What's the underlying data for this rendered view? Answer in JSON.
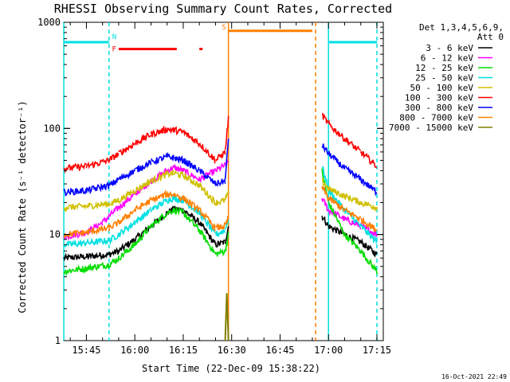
{
  "chart_data": {
    "type": "line",
    "title": "RHESSI Observing Summary Count Rates, Corrected",
    "xlabel": "Start Time (22-Dec-09 15:38:22)",
    "ylabel": "Corrected Count Rate (s⁻¹ detector⁻¹)",
    "yscale": "log",
    "ylim": [
      1,
      1000
    ],
    "xlim_minutes": [
      15.633,
      17.283
    ],
    "x_ticks": [
      "15:45",
      "16:00",
      "16:15",
      "16:30",
      "16:45",
      "17:00",
      "17:15"
    ],
    "y_ticks": [
      "1",
      "10",
      "100",
      "1000"
    ],
    "legend_header": [
      "Det 1,3,4,5,6,9,",
      "Att 0"
    ],
    "legend_position": "right",
    "annotations": {
      "footer": "16-Oct-2021 22:49",
      "flags": [
        "N",
        "F",
        "S"
      ]
    },
    "series": [
      {
        "name": "3 - 6 keV",
        "color": "#000000",
        "x": [
          "15:38",
          "15:45",
          "15:52",
          "15:55",
          "16:00",
          "16:05",
          "16:10",
          "16:12",
          "16:15",
          "16:20",
          "16:25",
          "16:28",
          "16:29",
          "16:58",
          "17:00",
          "17:05",
          "17:10",
          "17:15"
        ],
        "y": [
          6.0,
          6.2,
          6.5,
          7.0,
          9.0,
          12.0,
          16.0,
          17.5,
          17.0,
          13.0,
          8.0,
          8.5,
          12.0,
          15.0,
          12.0,
          10.0,
          8.5,
          6.5
        ]
      },
      {
        "name": "6 - 12 keV",
        "color": "#ff00ff",
        "x": [
          "15:38",
          "15:45",
          "15:50",
          "15:55",
          "16:00",
          "16:05",
          "16:10",
          "16:12",
          "16:15",
          "16:20",
          "16:25",
          "16:28",
          "16:29",
          "16:58",
          "17:00",
          "17:05",
          "17:10",
          "17:15"
        ],
        "y": [
          9.5,
          10.5,
          13.0,
          18.0,
          24.0,
          32.0,
          40.0,
          43.0,
          40.0,
          33.0,
          40.0,
          45.0,
          48.0,
          22.0,
          17.0,
          14.0,
          12.0,
          10.0
        ]
      },
      {
        "name": "12 - 25 keV",
        "color": "#00dd00",
        "x": [
          "15:38",
          "15:45",
          "15:52",
          "15:55",
          "16:00",
          "16:05",
          "16:10",
          "16:12",
          "16:15",
          "16:20",
          "16:25",
          "16:28",
          "16:29",
          "16:58",
          "17:00",
          "17:05",
          "17:10",
          "17:15"
        ],
        "y": [
          4.5,
          4.8,
          5.2,
          6.0,
          8.0,
          12.0,
          16.0,
          17.0,
          16.0,
          11.0,
          6.5,
          7.0,
          10.0,
          40.0,
          20.0,
          10.0,
          7.0,
          4.5
        ]
      },
      {
        "name": "25 - 50 keV",
        "color": "#00e0e0",
        "x": [
          "15:38",
          "15:45",
          "15:52",
          "15:55",
          "16:00",
          "16:05",
          "16:10",
          "16:12",
          "16:15",
          "16:20",
          "16:25",
          "16:28",
          "16:29",
          "16:58",
          "17:00",
          "17:05",
          "17:10",
          "17:15"
        ],
        "y": [
          8.0,
          8.3,
          8.8,
          10.0,
          13.0,
          17.0,
          21.0,
          22.0,
          21.0,
          16.0,
          10.0,
          11.0,
          14.0,
          45.0,
          26.0,
          17.0,
          12.0,
          8.5
        ]
      },
      {
        "name": "50 - 100 keV",
        "color": "#d0c000",
        "x": [
          "15:38",
          "15:45",
          "15:52",
          "15:55",
          "16:00",
          "16:05",
          "16:10",
          "16:12",
          "16:15",
          "16:20",
          "16:25",
          "16:28",
          "16:29",
          "16:58",
          "17:00",
          "17:05",
          "17:10",
          "17:15"
        ],
        "y": [
          18.0,
          18.5,
          19.5,
          21.0,
          26.0,
          32.0,
          37.0,
          38.0,
          36.0,
          29.0,
          20.0,
          21.0,
          25.0,
          32.0,
          27.0,
          23.0,
          20.0,
          18.0
        ]
      },
      {
        "name": "100 - 300 keV",
        "color": "#ff0000",
        "x": [
          "15:38",
          "15:45",
          "15:52",
          "15:55",
          "16:00",
          "16:05",
          "16:10",
          "16:12",
          "16:15",
          "16:20",
          "16:25",
          "16:28",
          "16:29",
          "16:58",
          "17:00",
          "17:05",
          "17:10",
          "17:15"
        ],
        "y": [
          42.0,
          44.0,
          50.0,
          58.0,
          72.0,
          88.0,
          98.0,
          97.0,
          92.0,
          72.0,
          50.0,
          60.0,
          125.0,
          135.0,
          110.0,
          80.0,
          60.0,
          44.0
        ]
      },
      {
        "name": "300 - 800 keV",
        "color": "#0000ff",
        "x": [
          "15:38",
          "15:45",
          "15:52",
          "15:55",
          "16:00",
          "16:05",
          "16:10",
          "16:12",
          "16:15",
          "16:20",
          "16:25",
          "16:28",
          "16:29",
          "16:58",
          "17:00",
          "17:05",
          "17:10",
          "17:15"
        ],
        "y": [
          25.0,
          26.0,
          29.0,
          33.0,
          40.0,
          48.0,
          54.0,
          53.0,
          50.0,
          40.0,
          30.0,
          32.0,
          80.0,
          70.0,
          58.0,
          42.0,
          33.0,
          25.0
        ]
      },
      {
        "name": "800 - 7000 keV",
        "color": "#ff8000",
        "x": [
          "15:38",
          "15:45",
          "15:52",
          "15:55",
          "16:00",
          "16:05",
          "16:10",
          "16:12",
          "16:15",
          "16:20",
          "16:25",
          "16:28",
          "16:29",
          "16:58",
          "17:00",
          "17:05",
          "17:10",
          "17:15"
        ],
        "y": [
          10.0,
          10.5,
          11.5,
          13.0,
          17.0,
          21.0,
          24.0,
          24.0,
          22.0,
          17.0,
          11.5,
          12.0,
          14.0,
          28.0,
          22.0,
          17.0,
          14.0,
          11.0
        ]
      },
      {
        "name": "7000 - 15000 keV",
        "color": "#808000",
        "x": [
          "16:28",
          "16:28.5",
          "16:29"
        ],
        "y": [
          1.0,
          2.8,
          1.0
        ]
      }
    ],
    "segment_gaps": [
      [
        "16:29",
        "16:58"
      ]
    ],
    "flag_bars": [
      {
        "label": "N",
        "color": "#00e0e0",
        "y_level": 650,
        "segments": [
          [
            "15:38",
            "15:52"
          ],
          [
            "17:00",
            "17:15"
          ]
        ]
      },
      {
        "label": "F",
        "color": "#ff0000",
        "y_level": 560,
        "segments": [
          [
            "15:55",
            "16:13"
          ],
          [
            "16:20",
            "16:21"
          ]
        ]
      },
      {
        "label": "S",
        "color": "#ff8000",
        "y_level": 830,
        "segments": [
          [
            "16:29",
            "16:55"
          ]
        ]
      }
    ],
    "vertical_lines": [
      {
        "x": "15:38",
        "color": "#00e0e0",
        "style": "solid"
      },
      {
        "x": "15:52",
        "color": "#00e0e0",
        "style": "dashed"
      },
      {
        "x": "16:29",
        "color": "#ff8000",
        "style": "solid"
      },
      {
        "x": "16:56",
        "color": "#ff8000",
        "style": "dashed"
      },
      {
        "x": "17:00",
        "color": "#00e0e0",
        "style": "solid"
      },
      {
        "x": "17:15",
        "color": "#00e0e0",
        "style": "dashed"
      }
    ]
  }
}
